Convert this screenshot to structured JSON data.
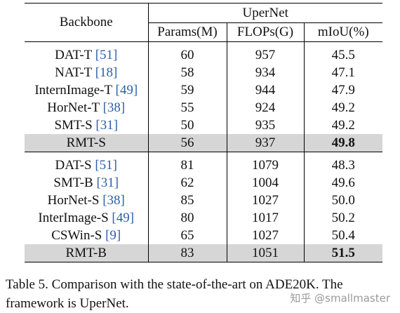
{
  "table": {
    "header": {
      "backbone": "Backbone",
      "group": "UperNet",
      "params": "Params(M)",
      "flops": "FLOPs(G)",
      "miou": "mIoU(%)"
    },
    "groups": [
      {
        "rows": [
          {
            "name": "DAT-T",
            "ref": "[51]",
            "params": "60",
            "flops": "957",
            "miou": "45.5",
            "highlight": false,
            "bold": false
          },
          {
            "name": "NAT-T",
            "ref": "[18]",
            "params": "58",
            "flops": "934",
            "miou": "47.1",
            "highlight": false,
            "bold": false
          },
          {
            "name": "InternImage-T",
            "ref": "[49]",
            "params": "59",
            "flops": "944",
            "miou": "47.9",
            "highlight": false,
            "bold": false
          },
          {
            "name": "HorNet-T",
            "ref": "[38]",
            "params": "55",
            "flops": "924",
            "miou": "49.2",
            "highlight": false,
            "bold": false
          },
          {
            "name": "SMT-S",
            "ref": "[31]",
            "params": "50",
            "flops": "935",
            "miou": "49.2",
            "highlight": false,
            "bold": false
          },
          {
            "name": "RMT-S",
            "ref": "",
            "params": "56",
            "flops": "937",
            "miou": "49.8",
            "highlight": true,
            "bold": true
          }
        ]
      },
      {
        "rows": [
          {
            "name": "DAT-S",
            "ref": "[51]",
            "params": "81",
            "flops": "1079",
            "miou": "48.3",
            "highlight": false,
            "bold": false
          },
          {
            "name": "SMT-B",
            "ref": "[31]",
            "params": "62",
            "flops": "1004",
            "miou": "49.6",
            "highlight": false,
            "bold": false
          },
          {
            "name": "HorNet-S",
            "ref": "[38]",
            "params": "85",
            "flops": "1027",
            "miou": "50.0",
            "highlight": false,
            "bold": false
          },
          {
            "name": "InterImage-S",
            "ref": "[49]",
            "params": "80",
            "flops": "1017",
            "miou": "50.2",
            "highlight": false,
            "bold": false
          },
          {
            "name": "CSWin-S",
            "ref": "[9]",
            "params": "65",
            "flops": "1027",
            "miou": "50.4",
            "highlight": false,
            "bold": false
          },
          {
            "name": "RMT-B",
            "ref": "",
            "params": "83",
            "flops": "1051",
            "miou": "51.5",
            "highlight": true,
            "bold": true
          }
        ]
      }
    ]
  },
  "caption": "Table 5. Comparison with the state-of-the-art on ADE20K. The framework is UperNet.",
  "watermark": "知乎 @smallmaster"
}
